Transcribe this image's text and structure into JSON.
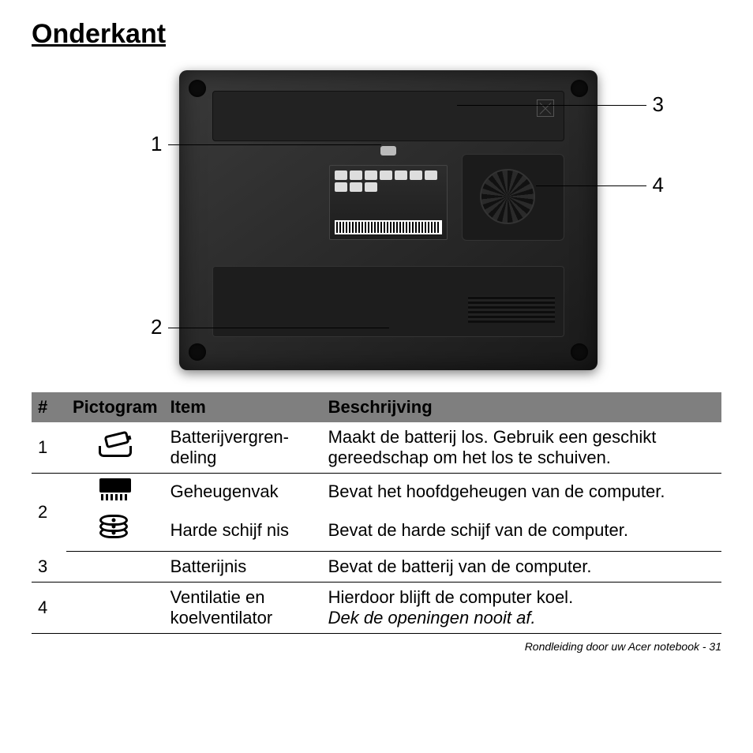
{
  "title": "Onderkant",
  "diagram": {
    "callouts": {
      "one": "1",
      "two": "2",
      "three": "3",
      "four": "4"
    }
  },
  "table": {
    "headers": {
      "num": "#",
      "pictogram": "Pictogram",
      "item": "Item",
      "desc": "Beschrijving"
    },
    "row1": {
      "num": "1",
      "item": "Batterijvergren-deling",
      "desc": "Maakt de batterij los. Gebruik een geschikt gereedschap om het los te schuiven."
    },
    "row2a": {
      "num": "2",
      "item": "Geheugenvak",
      "desc": "Bevat het hoofdgeheugen van de computer."
    },
    "row2b": {
      "item": "Harde schijf nis",
      "desc": "Bevat de harde schijf van de computer."
    },
    "row3": {
      "num": "3",
      "item": "Batterijnis",
      "desc": "Bevat de batterij van de computer."
    },
    "row4": {
      "num": "4",
      "item": "Ventilatie en koelventilator",
      "desc_line1": "Hierdoor blijft de computer koel.",
      "desc_line2": "Dek de openingen nooit af."
    }
  },
  "footer": {
    "text": "Rondleiding door uw Acer notebook -  31"
  }
}
